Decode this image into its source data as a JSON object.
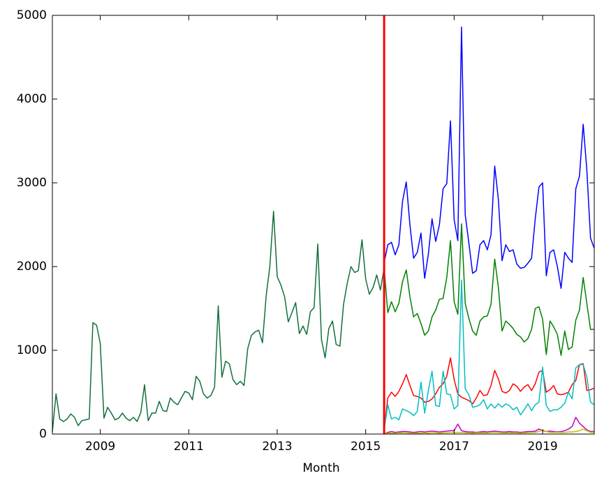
{
  "chart_data": {
    "type": "line",
    "x_label": "Month",
    "xlim": [
      2007.917,
      2020.167
    ],
    "xticks": [
      2009,
      2011,
      2013,
      2015,
      2017,
      2019
    ],
    "ylim": [
      0,
      5000
    ],
    "yticks": [
      0,
      1000,
      2000,
      3000,
      4000,
      5000
    ],
    "grid": false,
    "vline": {
      "x": 2015.417,
      "color": "#ff0000"
    },
    "x": [
      2007.917,
      2008.0,
      2008.083,
      2008.167,
      2008.25,
      2008.333,
      2008.417,
      2008.5,
      2008.583,
      2008.667,
      2008.75,
      2008.833,
      2008.917,
      2009.0,
      2009.083,
      2009.167,
      2009.25,
      2009.333,
      2009.417,
      2009.5,
      2009.583,
      2009.667,
      2009.75,
      2009.833,
      2009.917,
      2010.0,
      2010.083,
      2010.167,
      2010.25,
      2010.333,
      2010.417,
      2010.5,
      2010.583,
      2010.667,
      2010.75,
      2010.833,
      2010.917,
      2011.0,
      2011.083,
      2011.167,
      2011.25,
      2011.333,
      2011.417,
      2011.5,
      2011.583,
      2011.667,
      2011.75,
      2011.833,
      2011.917,
      2012.0,
      2012.083,
      2012.167,
      2012.25,
      2012.333,
      2012.417,
      2012.5,
      2012.583,
      2012.667,
      2012.75,
      2012.833,
      2012.917,
      2013.0,
      2013.083,
      2013.167,
      2013.25,
      2013.333,
      2013.417,
      2013.5,
      2013.583,
      2013.667,
      2013.75,
      2013.833,
      2013.917,
      2014.0,
      2014.083,
      2014.167,
      2014.25,
      2014.333,
      2014.417,
      2014.5,
      2014.583,
      2014.667,
      2014.75,
      2014.833,
      2014.917,
      2015.0,
      2015.083,
      2015.167,
      2015.25,
      2015.333,
      2015.417,
      2015.5,
      2015.583,
      2015.667,
      2015.75,
      2015.833,
      2015.917,
      2016.0,
      2016.083,
      2016.167,
      2016.25,
      2016.333,
      2016.417,
      2016.5,
      2016.583,
      2016.667,
      2016.75,
      2016.833,
      2016.917,
      2017.0,
      2017.083,
      2017.167,
      2017.25,
      2017.333,
      2017.417,
      2017.5,
      2017.583,
      2017.667,
      2017.75,
      2017.833,
      2017.917,
      2018.0,
      2018.083,
      2018.167,
      2018.25,
      2018.333,
      2018.417,
      2018.5,
      2018.583,
      2018.667,
      2018.75,
      2018.833,
      2018.917,
      2019.0,
      2019.083,
      2019.167,
      2019.25,
      2019.333,
      2019.417,
      2019.5,
      2019.583,
      2019.667,
      2019.75,
      2019.833,
      2019.917,
      2020.0,
      2020.083,
      2020.167
    ],
    "series": [
      {
        "color": "#11703a",
        "values": [
          30,
          480,
          180,
          150,
          180,
          240,
          200,
          100,
          160,
          170,
          180,
          1330,
          1300,
          1080,
          190,
          320,
          250,
          170,
          190,
          250,
          190,
          160,
          200,
          150,
          260,
          590,
          160,
          250,
          250,
          390,
          280,
          270,
          430,
          380,
          350,
          430,
          510,
          490,
          410,
          690,
          630,
          480,
          430,
          460,
          560,
          1530,
          680,
          870,
          840,
          650,
          590,
          630,
          580,
          1020,
          1180,
          1220,
          1240,
          1090,
          1650,
          2000,
          2660,
          1880,
          1780,
          1640,
          1340,
          1450,
          1570,
          1200,
          1290,
          1190,
          1460,
          1510,
          2270,
          1130,
          910,
          1260,
          1350,
          1070,
          1050,
          1550,
          1800,
          2000,
          1930,
          1950,
          2320,
          1850,
          1670,
          1750,
          1900,
          1720,
          1980,
          null,
          null,
          null,
          null,
          null,
          null,
          null,
          null,
          null,
          null,
          null,
          null,
          null,
          null,
          null,
          null,
          null,
          null,
          null,
          null,
          null,
          null,
          null,
          null,
          null,
          null,
          null,
          null,
          null,
          null,
          null,
          null,
          null,
          null,
          null,
          null,
          null,
          null,
          null,
          null,
          null,
          null,
          null,
          null,
          null,
          null,
          null,
          null,
          null,
          null,
          null,
          null,
          null,
          null,
          null,
          null,
          null
        ]
      },
      {
        "color": "#0000ff",
        "values": [
          null,
          null,
          null,
          null,
          null,
          null,
          null,
          null,
          null,
          null,
          null,
          null,
          null,
          null,
          null,
          null,
          null,
          null,
          null,
          null,
          null,
          null,
          null,
          null,
          null,
          null,
          null,
          null,
          null,
          null,
          null,
          null,
          null,
          null,
          null,
          null,
          null,
          null,
          null,
          null,
          null,
          null,
          null,
          null,
          null,
          null,
          null,
          null,
          null,
          null,
          null,
          null,
          null,
          null,
          null,
          null,
          null,
          null,
          null,
          null,
          null,
          null,
          null,
          null,
          null,
          null,
          null,
          null,
          null,
          null,
          null,
          null,
          null,
          null,
          null,
          null,
          null,
          null,
          null,
          null,
          null,
          null,
          null,
          null,
          null,
          null,
          null,
          null,
          null,
          null,
          2050,
          2260,
          2290,
          2140,
          2260,
          2780,
          3010,
          2500,
          2100,
          2170,
          2400,
          1860,
          2150,
          2570,
          2300,
          2500,
          2930,
          2990,
          3740,
          2560,
          2310,
          4860,
          2620,
          2280,
          1920,
          1950,
          2260,
          2310,
          2200,
          2380,
          3200,
          2800,
          2070,
          2260,
          2180,
          2200,
          2030,
          1980,
          1990,
          2040,
          2100,
          2570,
          2950,
          3000,
          1890,
          2170,
          2200,
          2000,
          1740,
          2170,
          2100,
          2050,
          2930,
          3080,
          3700,
          3150,
          2340,
          2220
        ]
      },
      {
        "color": "#008000",
        "values": [
          null,
          null,
          null,
          null,
          null,
          null,
          null,
          null,
          null,
          null,
          null,
          null,
          null,
          null,
          null,
          null,
          null,
          null,
          null,
          null,
          null,
          null,
          null,
          null,
          null,
          null,
          null,
          null,
          null,
          null,
          null,
          null,
          null,
          null,
          null,
          null,
          null,
          null,
          null,
          null,
          null,
          null,
          null,
          null,
          null,
          null,
          null,
          null,
          null,
          null,
          null,
          null,
          null,
          null,
          null,
          null,
          null,
          null,
          null,
          null,
          null,
          null,
          null,
          null,
          null,
          null,
          null,
          null,
          null,
          null,
          null,
          null,
          null,
          null,
          null,
          null,
          null,
          null,
          null,
          null,
          null,
          null,
          null,
          null,
          null,
          null,
          null,
          null,
          null,
          null,
          1980,
          1450,
          1580,
          1460,
          1560,
          1820,
          1960,
          1640,
          1400,
          1440,
          1320,
          1180,
          1230,
          1400,
          1480,
          1610,
          1620,
          1870,
          2310,
          1580,
          1430,
          2510,
          1560,
          1380,
          1230,
          1180,
          1350,
          1400,
          1410,
          1550,
          2090,
          1750,
          1230,
          1350,
          1310,
          1260,
          1190,
          1160,
          1100,
          1140,
          1250,
          1500,
          1520,
          1370,
          950,
          1350,
          1280,
          1190,
          940,
          1230,
          1010,
          1040,
          1360,
          1480,
          1870,
          1560,
          1250,
          1250
        ]
      },
      {
        "color": "#ff0000",
        "values": [
          null,
          null,
          null,
          null,
          null,
          null,
          null,
          null,
          null,
          null,
          null,
          null,
          null,
          null,
          null,
          null,
          null,
          null,
          null,
          null,
          null,
          null,
          null,
          null,
          null,
          null,
          null,
          null,
          null,
          null,
          null,
          null,
          null,
          null,
          null,
          null,
          null,
          null,
          null,
          null,
          null,
          null,
          null,
          null,
          null,
          null,
          null,
          null,
          null,
          null,
          null,
          null,
          null,
          null,
          null,
          null,
          null,
          null,
          null,
          null,
          null,
          null,
          null,
          null,
          null,
          null,
          null,
          null,
          null,
          null,
          null,
          null,
          null,
          null,
          null,
          null,
          null,
          null,
          null,
          null,
          null,
          null,
          null,
          null,
          null,
          null,
          null,
          null,
          null,
          null,
          50,
          430,
          500,
          450,
          510,
          600,
          710,
          580,
          460,
          450,
          430,
          380,
          390,
          420,
          480,
          560,
          600,
          690,
          910,
          650,
          480,
          440,
          420,
          400,
          360,
          430,
          520,
          460,
          470,
          580,
          760,
          660,
          510,
          490,
          520,
          600,
          570,
          510,
          560,
          590,
          520,
          600,
          740,
          760,
          500,
          530,
          580,
          480,
          470,
          480,
          500,
          590,
          640,
          830,
          840,
          520,
          530,
          550
        ]
      },
      {
        "color": "#00bfbf",
        "values": [
          null,
          null,
          null,
          null,
          null,
          null,
          null,
          null,
          null,
          null,
          null,
          null,
          null,
          null,
          null,
          null,
          null,
          null,
          null,
          null,
          null,
          null,
          null,
          null,
          null,
          null,
          null,
          null,
          null,
          null,
          null,
          null,
          null,
          null,
          null,
          null,
          null,
          null,
          null,
          null,
          null,
          null,
          null,
          null,
          null,
          null,
          null,
          null,
          null,
          null,
          null,
          null,
          null,
          null,
          null,
          null,
          null,
          null,
          null,
          null,
          null,
          null,
          null,
          null,
          null,
          null,
          null,
          null,
          null,
          null,
          null,
          null,
          null,
          null,
          null,
          null,
          null,
          null,
          null,
          null,
          null,
          null,
          null,
          null,
          null,
          null,
          null,
          null,
          null,
          null,
          50,
          350,
          180,
          200,
          170,
          300,
          280,
          260,
          220,
          270,
          620,
          250,
          520,
          750,
          340,
          330,
          750,
          480,
          470,
          300,
          340,
          1840,
          540,
          470,
          320,
          330,
          350,
          410,
          300,
          360,
          310,
          360,
          320,
          360,
          340,
          290,
          320,
          230,
          290,
          360,
          280,
          350,
          380,
          800,
          340,
          270,
          290,
          290,
          320,
          370,
          500,
          420,
          790,
          830,
          830,
          680,
          380,
          350
        ]
      },
      {
        "color": "#bf00bf",
        "values": [
          null,
          null,
          null,
          null,
          null,
          null,
          null,
          null,
          null,
          null,
          null,
          null,
          null,
          null,
          null,
          null,
          null,
          null,
          null,
          null,
          null,
          null,
          null,
          null,
          null,
          null,
          null,
          null,
          null,
          null,
          null,
          null,
          null,
          null,
          null,
          null,
          null,
          null,
          null,
          null,
          null,
          null,
          null,
          null,
          null,
          null,
          null,
          null,
          null,
          null,
          null,
          null,
          null,
          null,
          null,
          null,
          null,
          null,
          null,
          null,
          null,
          null,
          null,
          null,
          null,
          null,
          null,
          null,
          null,
          null,
          null,
          null,
          null,
          null,
          null,
          null,
          null,
          null,
          null,
          null,
          null,
          null,
          null,
          null,
          null,
          null,
          null,
          null,
          null,
          null,
          0,
          20,
          30,
          20,
          25,
          30,
          30,
          25,
          20,
          25,
          30,
          25,
          30,
          35,
          30,
          25,
          30,
          35,
          40,
          40,
          120,
          40,
          30,
          25,
          25,
          20,
          25,
          30,
          25,
          30,
          35,
          30,
          25,
          25,
          30,
          25,
          25,
          20,
          25,
          30,
          30,
          35,
          60,
          40,
          30,
          35,
          30,
          25,
          30,
          40,
          60,
          90,
          200,
          130,
          90,
          50,
          30,
          30
        ]
      },
      {
        "color": "#bfbf00",
        "values": [
          null,
          null,
          null,
          null,
          null,
          null,
          null,
          null,
          null,
          null,
          null,
          null,
          null,
          null,
          null,
          null,
          null,
          null,
          null,
          null,
          null,
          null,
          null,
          null,
          null,
          null,
          null,
          null,
          null,
          null,
          null,
          null,
          null,
          null,
          null,
          null,
          null,
          null,
          null,
          null,
          null,
          null,
          null,
          null,
          null,
          null,
          null,
          null,
          null,
          null,
          null,
          null,
          null,
          null,
          null,
          null,
          null,
          null,
          null,
          null,
          null,
          null,
          null,
          null,
          null,
          null,
          null,
          null,
          null,
          null,
          null,
          null,
          null,
          null,
          null,
          null,
          null,
          null,
          null,
          null,
          null,
          null,
          null,
          null,
          null,
          null,
          null,
          null,
          null,
          null,
          0,
          10,
          10,
          10,
          15,
          15,
          15,
          10,
          10,
          10,
          10,
          15,
          10,
          15,
          15,
          10,
          15,
          15,
          20,
          20,
          20,
          20,
          15,
          15,
          10,
          15,
          15,
          15,
          15,
          20,
          20,
          20,
          15,
          15,
          15,
          15,
          15,
          10,
          15,
          15,
          20,
          20,
          30,
          50,
          30,
          20,
          20,
          20,
          20,
          20,
          25,
          25,
          30,
          40,
          60,
          40,
          20,
          20
        ]
      }
    ]
  }
}
